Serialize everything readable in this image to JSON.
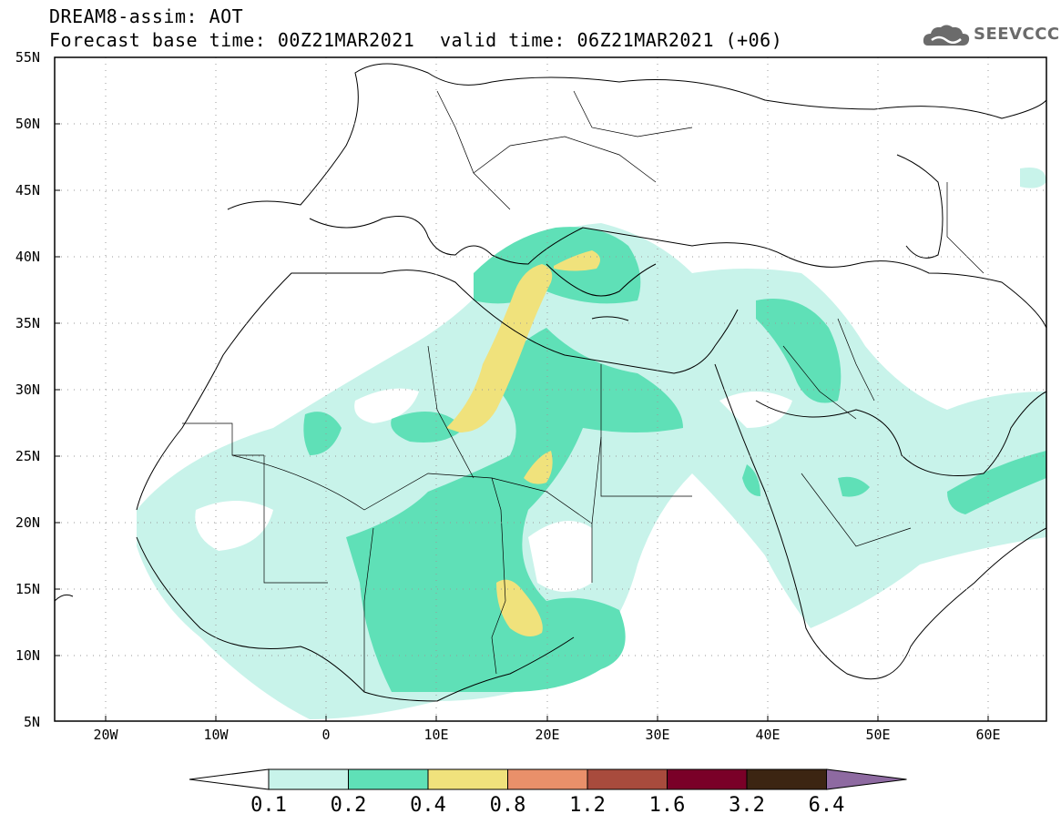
{
  "header": {
    "model_title": "DREAM8-assim: AOT",
    "base_time": "Forecast base time: 00Z21MAR2021",
    "valid_time": "valid time: 06Z21MAR2021 (+06)",
    "logo_text": "SEEVCCC"
  },
  "axes": {
    "lat_labels": [
      "55N",
      "50N",
      "45N",
      "40N",
      "35N",
      "30N",
      "25N",
      "20N",
      "15N",
      "10N",
      "5N"
    ],
    "lon_labels": [
      "20W",
      "10W",
      "0",
      "10E",
      "20E",
      "30E",
      "40E",
      "50E",
      "60E"
    ]
  },
  "colorbar": {
    "colors": [
      "#ffffff",
      "#c8f3ea",
      "#5fe0b7",
      "#f0e27c",
      "#e9906a",
      "#a84b3d",
      "#7a0028",
      "#3c2512",
      "#8e6aa1"
    ],
    "labels": [
      "0.1",
      "0.2",
      "0.4",
      "0.8",
      "1.2",
      "1.6",
      "3.2",
      "6.4"
    ]
  }
}
